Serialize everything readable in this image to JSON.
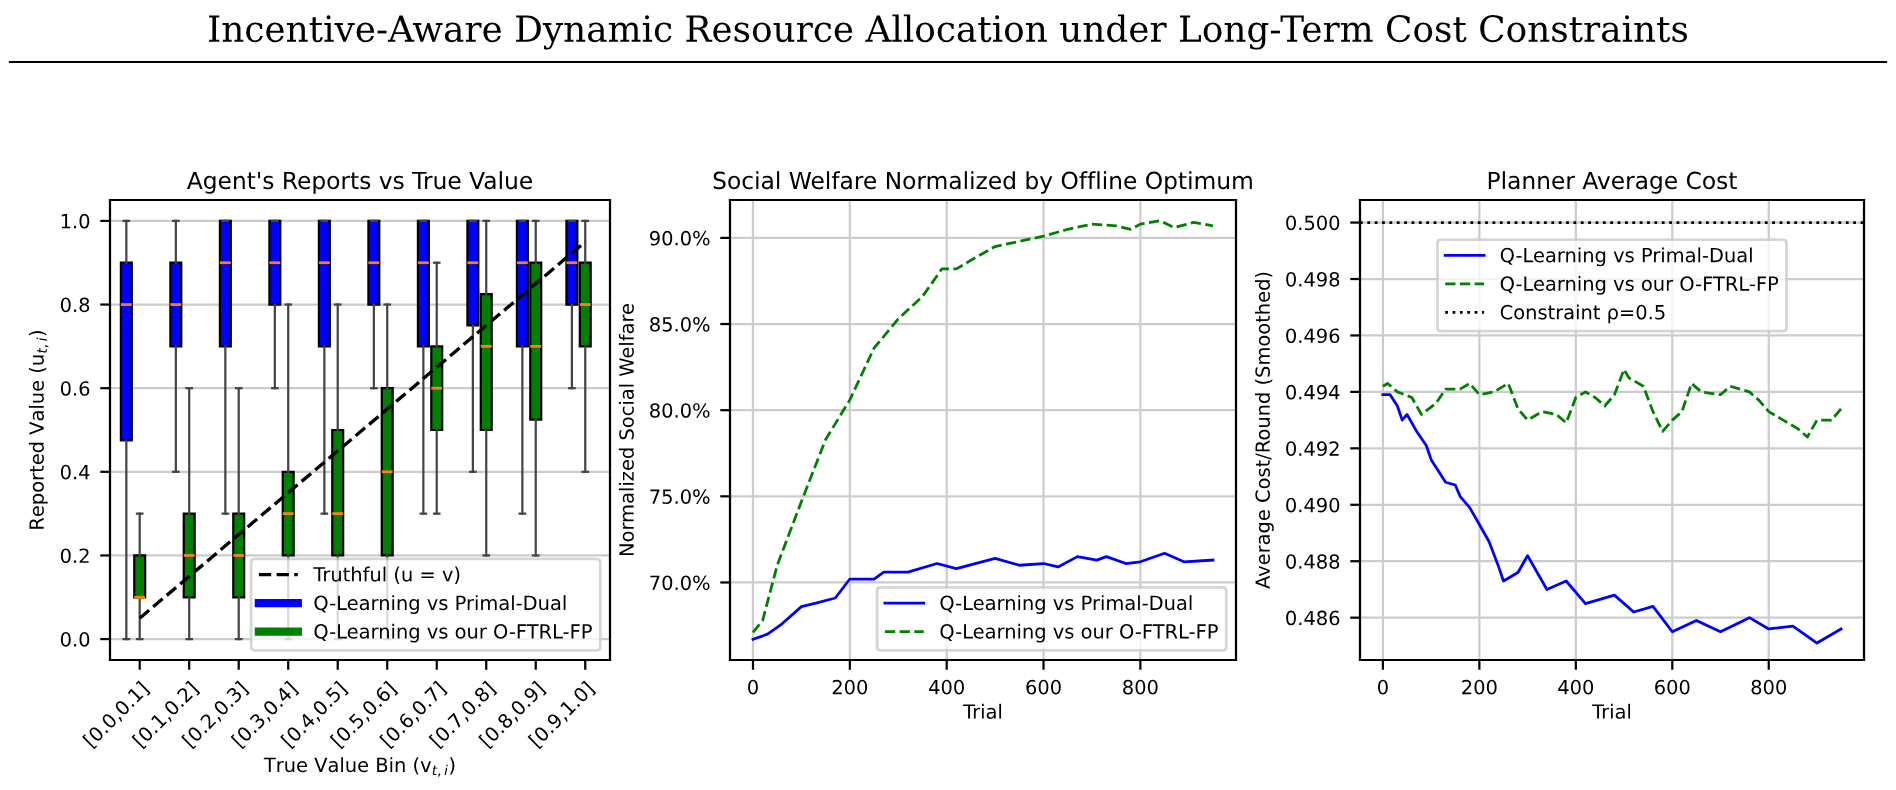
{
  "chart_data": [
    {
      "type": "box",
      "title": "Agent's Reports vs True Value",
      "annotations": [
        "Incentive-Aware Dynamic Resource Allocation under Long-Term Cost Constraints"
      ],
      "xlabel": "True Value Bin (v$_{t,i}$)",
      "ylabel": "Reported Value (u$_{t,i}$)",
      "categories": [
        "[0.0,0.1]",
        "[0.1,0.2]",
        "[0.2,0.3]",
        "[0.3,0.4]",
        "[0.4,0.5]",
        "[0.5,0.6]",
        "[0.6,0.7]",
        "[0.7,0.8]",
        "[0.8,0.9]",
        "[0.9,1.0]"
      ],
      "ylim": [
        -0.05,
        1.05
      ],
      "yticks": [
        {
          "value": 0,
          "label": "0.0"
        },
        0.2,
        0.4,
        0.6,
        0.8,
        {
          "value": 1,
          "label": "1.0"
        }
      ],
      "grid": "y",
      "legend": "bottom right",
      "series": [
        {
          "name": "Q-Learning vs Primal-Dual",
          "color": "#0000ff",
          "boxes": [
            {
              "low": 0.0,
              "q1": 0.475,
              "median": 0.8,
              "q3": 0.9,
              "high": 1.0
            },
            {
              "low": 0.4,
              "q1": 0.7,
              "median": 0.8,
              "q3": 0.9,
              "high": 1.0
            },
            {
              "low": 0.3,
              "q1": 0.7,
              "median": 0.9,
              "q3": 1.0,
              "high": 1.0
            },
            {
              "low": 0.6,
              "q1": 0.8,
              "median": 0.9,
              "q3": 1.0,
              "high": 1.0
            },
            {
              "low": 0.3,
              "q1": 0.7,
              "median": 0.9,
              "q3": 1.0,
              "high": 1.0
            },
            {
              "low": 0.6,
              "q1": 0.8,
              "median": 0.9,
              "q3": 1.0,
              "high": 1.0
            },
            {
              "low": 0.3,
              "q1": 0.7,
              "median": 0.9,
              "q3": 1.0,
              "high": 1.0
            },
            {
              "low": 0.4,
              "q1": 0.75,
              "median": 0.9,
              "q3": 1.0,
              "high": 1.0
            },
            {
              "low": 0.3,
              "q1": 0.7,
              "median": 0.9,
              "q3": 1.0,
              "high": 1.0
            },
            {
              "low": 0.6,
              "q1": 0.8,
              "median": 0.9,
              "q3": 1.0,
              "high": 1.0
            }
          ]
        },
        {
          "name": "Q-Learning vs our O-FTRL-FP",
          "color": "#008000",
          "boxes": [
            {
              "low": 0.0,
              "q1": 0.1,
              "median": 0.1,
              "q3": 0.2,
              "high": 0.3
            },
            {
              "low": 0.0,
              "q1": 0.1,
              "median": 0.2,
              "q3": 0.3,
              "high": 0.6
            },
            {
              "low": 0.0,
              "q1": 0.1,
              "median": 0.2,
              "q3": 0.3,
              "high": 0.6
            },
            {
              "low": 0.0,
              "q1": 0.2,
              "median": 0.3,
              "q3": 0.4,
              "high": 0.8
            },
            {
              "low": 0.0,
              "q1": 0.2,
              "median": 0.3,
              "q3": 0.5,
              "high": 0.8
            },
            {
              "low": 0.0,
              "q1": 0.2,
              "median": 0.4,
              "q3": 0.6,
              "high": 0.8
            },
            {
              "low": 0.3,
              "q1": 0.5,
              "median": 0.6,
              "q3": 0.7,
              "high": 0.9
            },
            {
              "low": 0.2,
              "q1": 0.5,
              "median": 0.7,
              "q3": 0.825,
              "high": 1.0
            },
            {
              "low": 0.2,
              "q1": 0.525,
              "median": 0.7,
              "q3": 0.9,
              "high": 1.0
            },
            {
              "low": 0.4,
              "q1": 0.7,
              "median": 0.8,
              "q3": 0.9,
              "high": 1.0
            }
          ]
        },
        {
          "type": "line",
          "name": "Truthful (u = v)",
          "color": "#000000",
          "line_style": "dashed",
          "values": [
            0.05,
            0.15,
            0.25,
            0.35,
            0.45,
            0.55,
            0.65,
            0.75,
            0.85,
            0.95
          ]
        }
      ]
    },
    {
      "type": "line",
      "title": "Social Welfare Normalized by Offline Optimum",
      "xlabel": "Trial",
      "ylabel": "Normalized Social Welfare",
      "xlim": [
        -47.5,
        997.5
      ],
      "xticks": [
        0,
        200,
        400,
        600,
        800
      ],
      "ylim": [
        65.5,
        92.2
      ],
      "yticks": [
        {
          "value": 70,
          "label": "70.0%"
        },
        {
          "value": 75,
          "label": "75.0%"
        },
        {
          "value": 80,
          "label": "80.0%"
        },
        {
          "value": 85,
          "label": "85.0%"
        },
        {
          "value": 90,
          "label": "90.0%"
        }
      ],
      "grid": true,
      "legend": "bottom right",
      "series": [
        {
          "name": "Q-Learning vs Primal-Dual",
          "color": "#0000ff",
          "line_style": "solid",
          "x": [
            0,
            30,
            60,
            100,
            130,
            170,
            200,
            250,
            270,
            320,
            380,
            420,
            500,
            550,
            600,
            630,
            670,
            710,
            730,
            770,
            800,
            850,
            890,
            950
          ],
          "values": [
            66.7,
            67.0,
            67.6,
            68.6,
            68.8,
            69.1,
            70.2,
            70.2,
            70.6,
            70.6,
            71.1,
            70.8,
            71.4,
            71.0,
            71.1,
            70.9,
            71.5,
            71.3,
            71.5,
            71.1,
            71.2,
            71.7,
            71.2,
            71.3
          ]
        },
        {
          "name": "Q-Learning vs our O-FTRL-FP",
          "color": "#008000",
          "line_style": "dashed",
          "x": [
            0,
            20,
            50,
            100,
            150,
            200,
            250,
            300,
            350,
            390,
            420,
            450,
            500,
            550,
            600,
            650,
            700,
            750,
            780,
            800,
            840,
            870,
            910,
            950
          ],
          "values": [
            67.1,
            67.8,
            71.0,
            74.7,
            78.3,
            80.6,
            83.6,
            85.3,
            86.6,
            88.2,
            88.2,
            88.7,
            89.5,
            89.8,
            90.1,
            90.5,
            90.8,
            90.7,
            90.5,
            90.8,
            91.0,
            90.6,
            90.9,
            90.7
          ]
        }
      ]
    },
    {
      "type": "line",
      "title": "Planner Average Cost",
      "xlabel": "Trial",
      "ylabel": "Average Cost/Round (Smoothed)",
      "xlim": [
        -47.5,
        997.5
      ],
      "xticks": [
        0,
        200,
        400,
        600,
        800
      ],
      "ylim": [
        0.4845,
        0.5008
      ],
      "yticks": [
        0.486,
        0.488,
        {
          "value": 0.49,
          "label": "0.490"
        },
        0.492,
        0.494,
        0.496,
        0.498,
        {
          "value": 0.5,
          "label": "0.500"
        }
      ],
      "grid": true,
      "legend": "top",
      "ref_lines": [
        {
          "axis": "y",
          "value": 0.5,
          "label": "Constraint ρ=0.5",
          "color": "#000000",
          "line_style": "dotted"
        }
      ],
      "series": [
        {
          "name": "Q-Learning vs Primal-Dual",
          "color": "#0000ff",
          "line_style": "solid",
          "x": [
            0,
            15,
            30,
            40,
            50,
            70,
            90,
            100,
            130,
            150,
            160,
            180,
            200,
            220,
            240,
            250,
            280,
            300,
            340,
            380,
            420,
            480,
            520,
            560,
            600,
            650,
            700,
            760,
            800,
            850,
            900,
            950
          ],
          "values": [
            0.4939,
            0.4939,
            0.4935,
            0.493,
            0.4932,
            0.4926,
            0.4921,
            0.4916,
            0.4908,
            0.4907,
            0.4903,
            0.4899,
            0.4893,
            0.4887,
            0.4878,
            0.4873,
            0.4876,
            0.4882,
            0.487,
            0.4873,
            0.4865,
            0.4868,
            0.4862,
            0.4864,
            0.4855,
            0.4859,
            0.4855,
            0.486,
            0.4856,
            0.4857,
            0.4851,
            0.4856
          ]
        },
        {
          "name": "Q-Learning vs our O-FTRL-FP",
          "color": "#008000",
          "line_style": "dashed",
          "x": [
            0,
            10,
            30,
            60,
            80,
            110,
            130,
            160,
            180,
            200,
            230,
            260,
            280,
            300,
            330,
            360,
            380,
            400,
            420,
            440,
            460,
            480,
            500,
            510,
            540,
            560,
            580,
            600,
            620,
            640,
            660,
            700,
            720,
            760,
            780,
            800,
            830,
            860,
            880,
            900,
            930,
            950
          ],
          "values": [
            0.4942,
            0.4943,
            0.494,
            0.4938,
            0.4932,
            0.4936,
            0.4941,
            0.4941,
            0.4943,
            0.4939,
            0.494,
            0.4943,
            0.4934,
            0.493,
            0.4933,
            0.4932,
            0.4929,
            0.4938,
            0.494,
            0.4938,
            0.4935,
            0.4939,
            0.4948,
            0.4945,
            0.4942,
            0.4933,
            0.4926,
            0.493,
            0.4933,
            0.4943,
            0.494,
            0.4939,
            0.4942,
            0.494,
            0.4937,
            0.4933,
            0.493,
            0.4927,
            0.4924,
            0.493,
            0.493,
            0.4934
          ]
        }
      ]
    }
  ]
}
